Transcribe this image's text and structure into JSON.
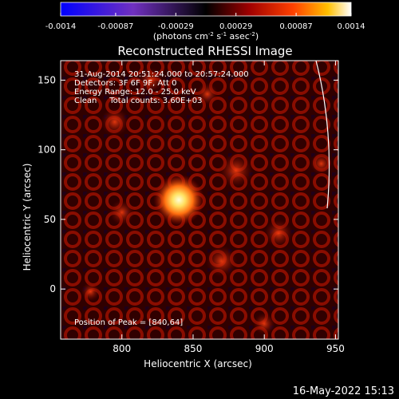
{
  "chart_data": {
    "type": "heatmap",
    "title": "Reconstructed RHESSI Image",
    "xlabel": "Heliocentric X (arcsec)",
    "ylabel": "Heliocentric Y (arcsec)",
    "xlim": [
      757,
      952
    ],
    "ylim": [
      -36,
      164
    ],
    "x_ticks": [
      800,
      850,
      900,
      950
    ],
    "y_ticks": [
      0,
      50,
      100,
      150
    ],
    "colorbar": {
      "min": -0.0014,
      "max": 0.0014,
      "ticks": [
        {
          "value": -0.0014,
          "label": "-0.0014"
        },
        {
          "value": -0.00087,
          "label": "-0.00087"
        },
        {
          "value": -0.00029,
          "label": "-0.00029"
        },
        {
          "value": 0.00029,
          "label": "0.00029"
        },
        {
          "value": 0.00087,
          "label": "0.00087"
        },
        {
          "value": 0.0014,
          "label": "0.0014"
        }
      ],
      "label_main": "(photons cm",
      "label_exp1": "-2",
      "label_mid1": " s",
      "label_exp2": "-1",
      "label_mid2": " asec",
      "label_exp3": "-2",
      "label_end": ")"
    },
    "annotations": [
      "31-Aug-2014 20:51:24.000 to 20:57:24.000",
      "Detectors: 3F 6F 9F, Att 0",
      "Energy Range: 12.0 - 25.0 keV",
      "Clean     Total counts: 3.60E+03"
    ],
    "peak_label": "Position of Peak = [840,64]",
    "peak": [
      840,
      64
    ],
    "limb_visible": true
  },
  "footer": {
    "timestamp": "16-May-2022 15:13"
  },
  "colors": {
    "background": "#000000",
    "text": "#ffffff",
    "peak": "#ffffd0",
    "limb": "#ffffff"
  }
}
